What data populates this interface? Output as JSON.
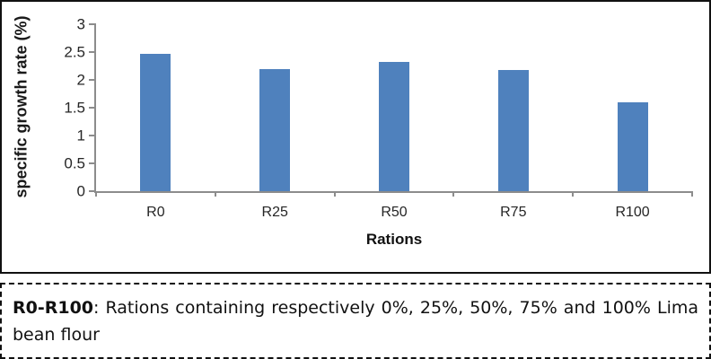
{
  "chart": {
    "y_axis_label": "specific growth rate (%)",
    "x_axis_label": "Rations"
  },
  "chart_data": {
    "type": "bar",
    "categories": [
      "R0",
      "R25",
      "R50",
      "R75",
      "R100"
    ],
    "values": [
      2.47,
      2.2,
      2.32,
      2.18,
      1.6
    ],
    "title": "",
    "xlabel": "Rations",
    "ylabel": "specific growth rate (%)",
    "ylim": [
      0,
      3
    ],
    "yticks": [
      0,
      0.5,
      1,
      1.5,
      2,
      2.5,
      3
    ],
    "grid": false,
    "legend": false,
    "bar_color": "#4f81bd",
    "axis_color": "#8c8c8c"
  },
  "caption": {
    "term": "R0-R100",
    "separator": ": ",
    "text": "Rations containing respectively 0%, 25%, 50%, 75% and 100% Lima bean flour"
  }
}
